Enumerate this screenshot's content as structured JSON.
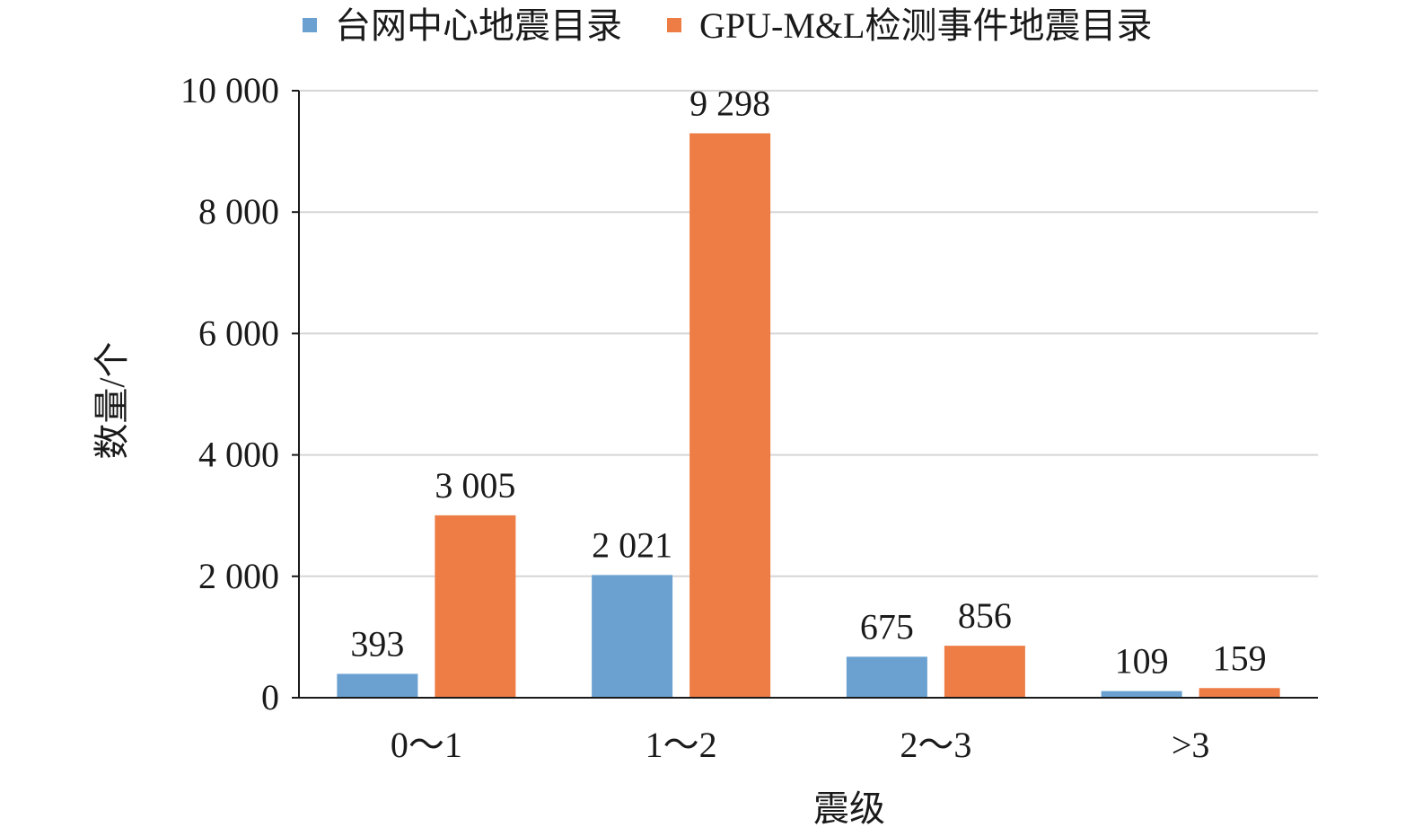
{
  "chart_data": {
    "type": "bar",
    "title": "",
    "xlabel": "震级",
    "ylabel": "数量/个",
    "categories": [
      "0～1",
      "1～2",
      "2～3",
      ">3"
    ],
    "series": [
      {
        "name": "台网中心地震目录",
        "color": "#6aa1d0",
        "values": [
          393,
          2021,
          675,
          109
        ],
        "labels": [
          "393",
          "2 021",
          "675",
          "109"
        ]
      },
      {
        "name": "GPU-M&L检测事件地震目录",
        "color": "#ed7d44",
        "values": [
          3005,
          9298,
          856,
          159
        ],
        "labels": [
          "3 005",
          "9 298",
          "856",
          "159"
        ]
      }
    ],
    "ylim": [
      0,
      10000
    ],
    "yticks": [
      0,
      2000,
      4000,
      6000,
      8000,
      10000
    ],
    "ytick_labels": [
      "0",
      "2 000",
      "4 000",
      "6 000",
      "8 000",
      "10 000"
    ],
    "grid": true,
    "legend_position": "top"
  }
}
